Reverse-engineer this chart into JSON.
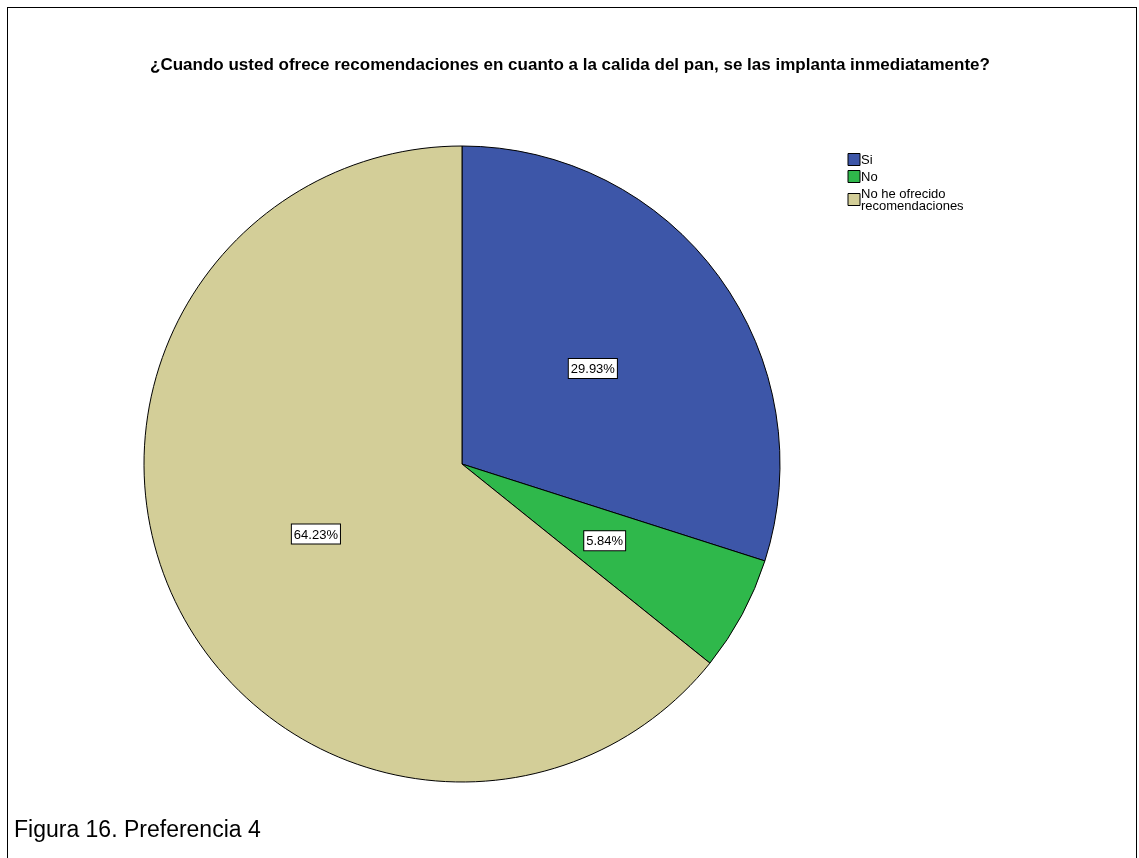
{
  "chart_data": {
    "type": "pie",
    "title": "¿Cuando usted ofrece recomendaciones en cuanto a la calida del pan, se las implanta inmediatamente?",
    "categories": [
      "Si",
      "No",
      "No he ofrecido recomendaciones"
    ],
    "values": [
      29.93,
      5.84,
      64.23
    ],
    "colors": [
      "#3d56a8",
      "#2fb84b",
      "#d3ce98"
    ],
    "value_labels": [
      "29.93%",
      "5.84%",
      "64.23%"
    ],
    "legend": "top right",
    "annotations": [
      "Figura 16. Preferencia 4"
    ]
  }
}
